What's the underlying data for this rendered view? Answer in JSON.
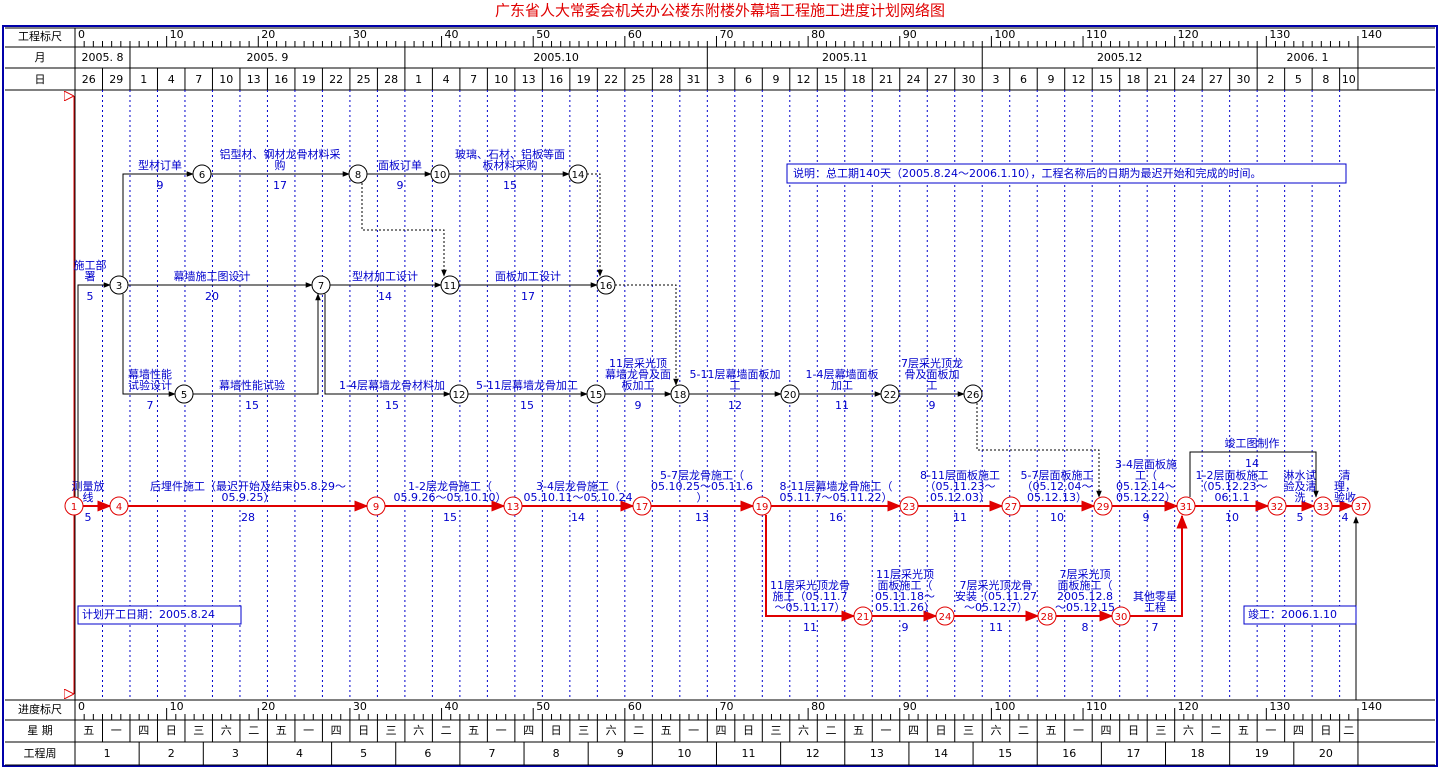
{
  "title": "广东省人大常委会机关办公楼东附楼外幕墙工程施工进度计划网络图",
  "header": {
    "scale_label": "工程标尺",
    "month_label": "月",
    "day_label": "日",
    "scale_ticks": [
      0,
      10,
      20,
      30,
      40,
      50,
      60,
      70,
      80,
      90,
      100,
      110,
      120,
      130,
      140
    ],
    "months": [
      "2005. 8",
      "2005. 9",
      "2005.10",
      "2005.11",
      "2005.12",
      "2006. 1"
    ],
    "days": [
      26,
      29,
      1,
      4,
      7,
      10,
      13,
      16,
      19,
      22,
      25,
      28,
      1,
      4,
      7,
      10,
      13,
      16,
      19,
      22,
      25,
      28,
      31,
      3,
      6,
      9,
      12,
      15,
      18,
      21,
      24,
      27,
      30,
      3,
      6,
      9,
      12,
      15,
      18,
      21,
      24,
      27,
      30,
      2,
      5,
      8,
      10
    ]
  },
  "footer": {
    "scale_label": "进度标尺",
    "weekday_label": "星 期",
    "week_label": "工程周",
    "weekdays": [
      "五",
      "一",
      "四",
      "日",
      "三",
      "六",
      "二",
      "五",
      "一",
      "四",
      "日",
      "三",
      "六",
      "二",
      "五",
      "一",
      "四",
      "日",
      "三",
      "六",
      "二",
      "五",
      "一",
      "四",
      "日",
      "三",
      "六",
      "二",
      "五",
      "一",
      "四",
      "日",
      "三",
      "六",
      "二",
      "五",
      "一",
      "四",
      "日",
      "三",
      "六",
      "二",
      "五",
      "一",
      "四",
      "日",
      "二"
    ],
    "weeks": [
      1,
      2,
      3,
      4,
      5,
      6,
      7,
      8,
      9,
      10,
      11,
      12,
      13,
      14,
      15,
      16,
      17,
      18,
      19,
      20
    ]
  },
  "nodes": [
    1,
    3,
    4,
    5,
    6,
    7,
    8,
    9,
    10,
    11,
    12,
    13,
    14,
    15,
    16,
    17,
    18,
    19,
    20,
    21,
    22,
    23,
    24,
    26,
    27,
    28,
    29,
    30,
    31,
    32,
    33,
    37
  ],
  "edges": [
    {
      "label": [
        "测量放",
        "线"
      ],
      "duration": 5
    },
    {
      "label": [
        "后埋件施工（最迟开始及结束05.8.29～",
        "05.9.25）"
      ],
      "duration": 28
    },
    {
      "label": [
        "1-2层龙骨施工（",
        "05.9.26～05.10.10）"
      ],
      "duration": 15
    },
    {
      "label": [
        "3-4层龙骨施工（",
        "05.10.11～05.10.24"
      ],
      "duration": 14
    },
    {
      "label": [
        "5-7层龙骨施工（",
        "05.10.25～05.11.6",
        "）"
      ],
      "duration": 13
    },
    {
      "label": [
        "8-11层幕墙龙骨施工（",
        "05.11.7～05.11.22）"
      ],
      "duration": 16
    },
    {
      "label": [
        "8-11层面板施工",
        "（05.11.23～",
        "05.12.03）"
      ],
      "duration": 11
    },
    {
      "label": [
        "5-7层面板施工",
        "（05.12.04～",
        "05.12.13）"
      ],
      "duration": 10
    },
    {
      "label": [
        "3-4层面板施",
        "工（",
        "05.12.14～",
        "05.12.22）"
      ],
      "duration": 9
    },
    {
      "label": [
        "1-2层面板施工",
        "（05.12.23～",
        "06.1.1"
      ],
      "duration": 10
    },
    {
      "label": [
        "淋水试",
        "验及清",
        "洗"
      ],
      "duration": 5
    },
    {
      "label": [
        "清",
        "理，",
        "验收"
      ],
      "duration": 4
    },
    {
      "label": [
        "11层采光顶龙骨",
        "施工（05.11.7",
        "～05.11.17）"
      ],
      "duration": 11
    },
    {
      "label": [
        "11层采光顶",
        "面板施工（",
        "05.11.18～",
        "05.11.26）"
      ],
      "duration": 9
    },
    {
      "label": [
        "7层采光顶龙骨",
        "安装（05.11.27",
        "～05.12.7）"
      ],
      "duration": 11
    },
    {
      "label": [
        "7层采光顶",
        "面板施工（",
        "2005.12.8",
        "～05.12.15"
      ],
      "duration": 8
    },
    {
      "label": [
        "其他零星",
        "工程"
      ],
      "duration": 7
    },
    {
      "label": [
        "竣工图制作"
      ],
      "duration": 14
    },
    {
      "label": [
        "施工部",
        "署"
      ],
      "duration": 5
    },
    {
      "label": [
        "型材订单"
      ],
      "duration": 9
    },
    {
      "label": [
        "铝型材、钢材龙骨材料采",
        "购"
      ],
      "duration": 17
    },
    {
      "label": [
        "面板订单"
      ],
      "duration": 9
    },
    {
      "label": [
        "玻璃、石材、铝板等面",
        "板材料采购"
      ],
      "duration": 15
    },
    {
      "label": [
        "幕墙施工图设计"
      ],
      "duration": 20
    },
    {
      "label": [
        "型材加工设计"
      ],
      "duration": 14
    },
    {
      "label": [
        "面板加工设计"
      ],
      "duration": 17
    },
    {
      "label": [
        "幕墙性能",
        "试验设计"
      ],
      "duration": 7
    },
    {
      "label": [
        "幕墙性能试验"
      ],
      "duration": 15
    },
    {
      "label": [
        "1-4层幕墙龙骨材料加"
      ],
      "duration": 15
    },
    {
      "label": [
        "5-11层幕墙龙骨加工"
      ],
      "duration": 15
    },
    {
      "label": [
        "11层采光顶",
        "幕墙龙骨及面",
        "板加工"
      ],
      "duration": 9
    },
    {
      "label": [
        "5-11层幕墙面板加",
        "工"
      ],
      "duration": 12
    },
    {
      "label": [
        "1-4层幕墙面板",
        "加工"
      ],
      "duration": 11
    },
    {
      "label": [
        "7层采光顶龙",
        "骨及面板加",
        "工"
      ],
      "duration": 9
    }
  ],
  "notes": {
    "summary": "说明：总工期140天（2005.8.24～2006.1.10），工程名称后的日期为最迟开始和完成的时间。",
    "start": "计划开工日期：2005.8.24",
    "finish": "竣工：2006.1.10"
  }
}
